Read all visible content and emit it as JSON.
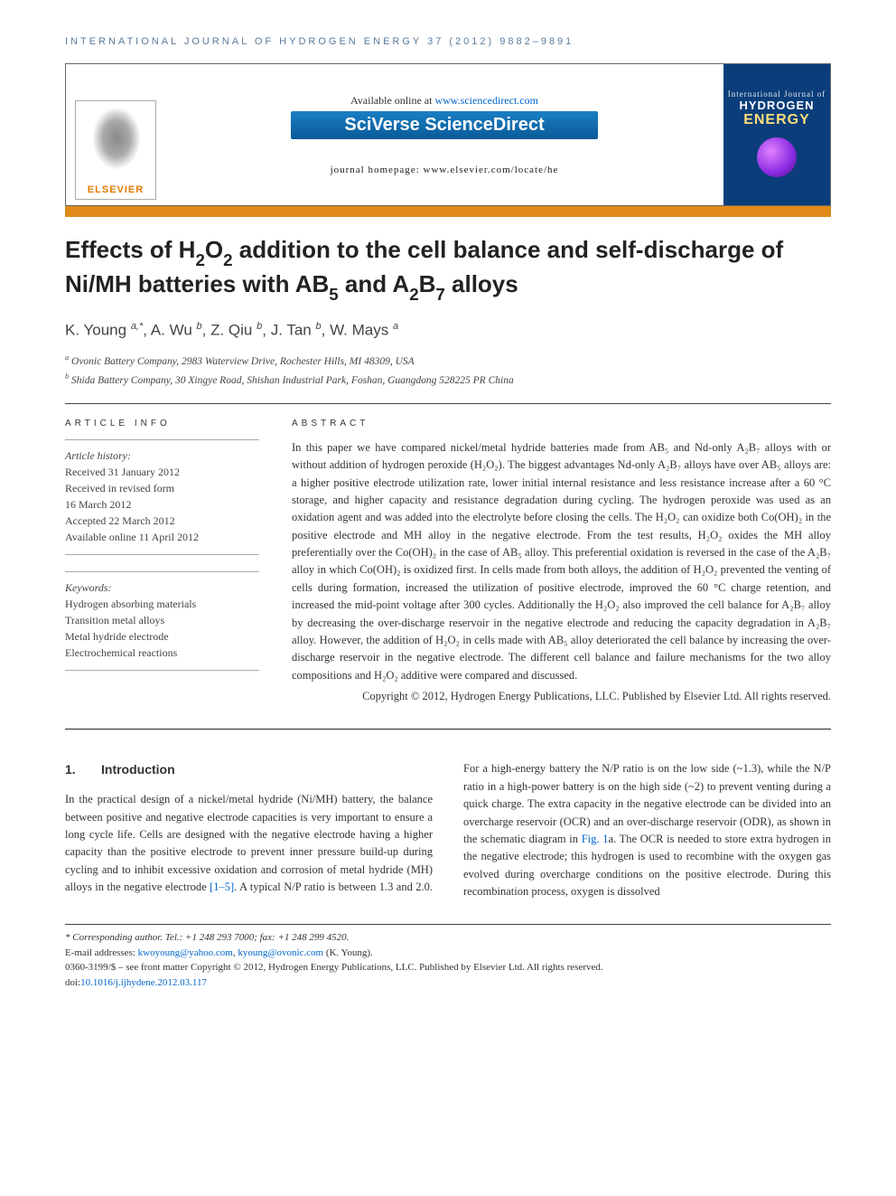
{
  "running_head": "INTERNATIONAL JOURNAL OF HYDROGEN ENERGY 37 (2012) 9882–9891",
  "header": {
    "available": "Available online at ",
    "available_url": "www.sciencedirect.com",
    "sciverse": "SciVerse ScienceDirect",
    "journal_home_prefix": "journal homepage: ",
    "journal_home_url": "www.elsevier.com/locate/he",
    "elsevier_label": "ELSEVIER",
    "cover_line1": "International Journal of",
    "cover_line2": "HYDROGEN",
    "cover_line3": "ENERGY"
  },
  "title": {
    "pre1": "Effects of H",
    "sub1": "2",
    "mid1": "O",
    "sub2": "2",
    "mid2": " addition to the cell balance and self-discharge of Ni/MH batteries with AB",
    "sub3": "5",
    "mid3": " and A",
    "sub4": "2",
    "mid4": "B",
    "sub5": "7",
    "post": " alloys"
  },
  "authors": {
    "list": [
      {
        "name": "K. Young",
        "marks": "a,*"
      },
      {
        "name": "A. Wu",
        "marks": "b"
      },
      {
        "name": "Z. Qiu",
        "marks": "b"
      },
      {
        "name": "J. Tan",
        "marks": "b"
      },
      {
        "name": "W. Mays",
        "marks": "a"
      }
    ]
  },
  "affiliations": {
    "a": "Ovonic Battery Company, 2983 Waterview Drive, Rochester Hills, MI 48309, USA",
    "b": "Shida Battery Company, 30 Xingye Road, Shishan Industrial Park, Foshan, Guangdong 528225 PR China"
  },
  "article_info": {
    "label": "ARTICLE INFO",
    "history_head": "Article history:",
    "received": "Received 31 January 2012",
    "revised1": "Received in revised form",
    "revised2": "16 March 2012",
    "accepted": "Accepted 22 March 2012",
    "online": "Available online 11 April 2012",
    "keywords_head": "Keywords:",
    "keywords": [
      "Hydrogen absorbing materials",
      "Transition metal alloys",
      "Metal hydride electrode",
      "Electrochemical reactions"
    ]
  },
  "abstract": {
    "label": "ABSTRACT",
    "text": "In this paper we have compared nickel/metal hydride batteries made from AB₅ and Nd-only A₂B₇ alloys with or without addition of hydrogen peroxide (H₂O₂). The biggest advantages Nd-only A₂B₇ alloys have over AB₅ alloys are: a higher positive electrode utilization rate, lower initial internal resistance and less resistance increase after a 60 °C storage, and higher capacity and resistance degradation during cycling. The hydrogen peroxide was used as an oxidation agent and was added into the electrolyte before closing the cells. The H₂O₂ can oxidize both Co(OH)₂ in the positive electrode and MH alloy in the negative electrode. From the test results, H₂O₂ oxides the MH alloy preferentially over the Co(OH)₂ in the case of AB₅ alloy. This preferential oxidation is reversed in the case of the A₂B₇ alloy in which Co(OH)₂ is oxidized first. In cells made from both alloys, the addition of H₂O₂ prevented the venting of cells during formation, increased the utilization of positive electrode, improved the 60 °C charge retention, and increased the mid-point voltage after 300 cycles. Additionally the H₂O₂ also improved the cell balance for A₂B₇ alloy by decreasing the over-discharge reservoir in the negative electrode and reducing the capacity degradation in A₂B₇ alloy. However, the addition of H₂O₂ in cells made with AB₅ alloy deteriorated the cell balance by increasing the over-discharge reservoir in the negative electrode. The different cell balance and failure mechanisms for the two alloy compositions and H₂O₂ additive were compared and discussed.",
    "copyright": "Copyright © 2012, Hydrogen Energy Publications, LLC. Published by Elsevier Ltd. All rights reserved."
  },
  "body": {
    "heading_num": "1.",
    "heading_text": "Introduction",
    "col1": "In the practical design of a nickel/metal hydride (Ni/MH) battery, the balance between positive and negative electrode capacities is very important to ensure a long cycle life. Cells are designed with the negative electrode having a higher capacity than the positive electrode to prevent inner pressure build-up during cycling and to inhibit excessive oxidation and corrosion of metal hydride (MH) alloys in the negative electrode ",
    "ref": "[1–5]",
    "col1b": ". A typical N/P ratio is between 1.3 and 2.0. For",
    "col2a": "a high-energy battery the N/P ratio is on the low side (~1.3), while the N/P ratio in a high-power battery is on the high side (~2) to prevent venting during a quick charge. The extra capacity in the negative electrode can be divided into an overcharge reservoir (OCR) and an over-discharge reservoir (ODR), as shown in the schematic diagram in ",
    "figref": "Fig. 1",
    "col2b": "a. The OCR is needed to store extra hydrogen in the negative electrode; this hydrogen is used to recombine with the oxygen gas evolved during overcharge conditions on the positive electrode. During this recombination process, oxygen is dissolved"
  },
  "footnotes": {
    "corr": "* Corresponding author. Tel.: +1 248 293 7000; fax: +1 248 299 4520.",
    "email_label": "E-mail addresses: ",
    "email1": "kwoyoung@yahoo.com",
    "email_sep": ", ",
    "email2": "kyoung@ovonic.com",
    "email_author": " (K. Young).",
    "issn": "0360-3199/$ – see front matter Copyright © 2012, Hydrogen Energy Publications, LLC. Published by Elsevier Ltd. All rights reserved.",
    "doi_label": "doi:",
    "doi": "10.1016/j.ijhydene.2012.03.117"
  },
  "colors": {
    "orange_bar": "#e08a1a",
    "link": "#0066cc",
    "running_head": "#5a7a9a",
    "cover_bg": "#0a3d7a",
    "sciverse_grad_top": "#1a7fc4",
    "sciverse_grad_bot": "#0a5a98"
  }
}
